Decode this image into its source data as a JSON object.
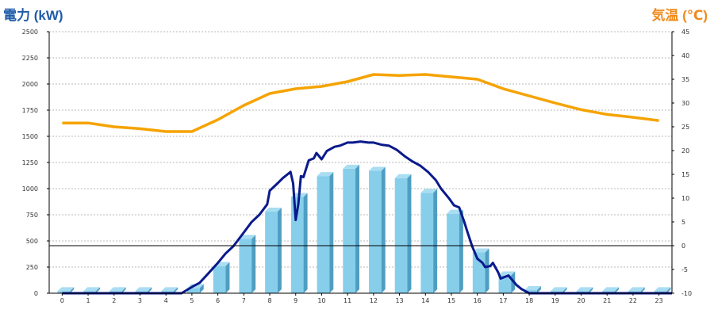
{
  "chart_data": {
    "type": "bar",
    "title": "",
    "categories": [
      "0",
      "1",
      "2",
      "3",
      "4",
      "5",
      "6",
      "7",
      "8",
      "9",
      "10",
      "11",
      "12",
      "13",
      "14",
      "15",
      "16",
      "17",
      "18",
      "19",
      "20",
      "21",
      "22",
      "23"
    ],
    "y_left_label": "電力 (kW)",
    "y_right_label": "気温 (℃)",
    "y_left_range": [
      0,
      2500
    ],
    "y_left_ticks": [
      0,
      250,
      500,
      750,
      1000,
      1250,
      1500,
      1750,
      2000,
      2250,
      2500
    ],
    "y_right_range": [
      -10,
      45
    ],
    "y_right_ticks": [
      -10,
      -5,
      0,
      5,
      10,
      15,
      20,
      25,
      30,
      35,
      40,
      45
    ],
    "grid": "horizontal-dashed",
    "series": [
      {
        "kind": "bar",
        "axis": "left",
        "color": "#87ceeb",
        "values": [
          20,
          20,
          20,
          20,
          20,
          50,
          260,
          520,
          780,
          920,
          1120,
          1190,
          1170,
          1100,
          960,
          760,
          390,
          170,
          30,
          20,
          20,
          20,
          20,
          20
        ]
      },
      {
        "kind": "line",
        "axis": "left",
        "color": "#0a1a8c",
        "x": [
          0,
          4.6,
          5.0,
          5.3,
          5.6,
          6.0,
          6.3,
          6.6,
          7.0,
          7.3,
          7.6,
          7.9,
          8.0,
          8.3,
          8.5,
          8.8,
          8.9,
          9.0,
          9.1,
          9.2,
          9.3,
          9.5,
          9.7,
          9.8,
          10.0,
          10.2,
          10.5,
          10.7,
          11.0,
          11.2,
          11.5,
          11.8,
          12.0,
          12.3,
          12.6,
          12.9,
          13.2,
          13.5,
          13.8,
          14.1,
          14.4,
          14.6,
          14.9,
          15.1,
          15.3,
          15.5,
          15.6,
          15.8,
          16.0,
          16.2,
          16.3,
          16.5,
          16.6,
          16.8,
          16.9,
          17.2,
          17.5,
          17.7,
          18.0,
          23.5
        ],
        "values": [
          0,
          0,
          60,
          100,
          180,
          290,
          380,
          450,
          580,
          680,
          750,
          850,
          980,
          1050,
          1100,
          1160,
          1050,
          700,
          850,
          1120,
          1110,
          1270,
          1290,
          1340,
          1280,
          1360,
          1400,
          1410,
          1440,
          1440,
          1450,
          1440,
          1440,
          1420,
          1410,
          1370,
          1310,
          1260,
          1220,
          1160,
          1080,
          1000,
          910,
          840,
          820,
          680,
          600,
          450,
          330,
          290,
          250,
          260,
          290,
          200,
          140,
          170,
          80,
          40,
          0,
          0
        ]
      },
      {
        "kind": "line",
        "axis": "right",
        "color": "#f5a300",
        "x": [
          0,
          1,
          2,
          3,
          4,
          5,
          6,
          7,
          8,
          9,
          10,
          11,
          12,
          13,
          14,
          15,
          16,
          17,
          18,
          19,
          20,
          21,
          22,
          23
        ],
        "values": [
          25.8,
          25.8,
          25.0,
          24.6,
          24.0,
          24.0,
          26.5,
          29.5,
          32.0,
          33.0,
          33.5,
          34.5,
          36.0,
          35.8,
          36.0,
          35.5,
          35.0,
          33.0,
          31.5,
          30.0,
          28.6,
          27.6,
          27.0,
          26.3
        ]
      }
    ]
  }
}
